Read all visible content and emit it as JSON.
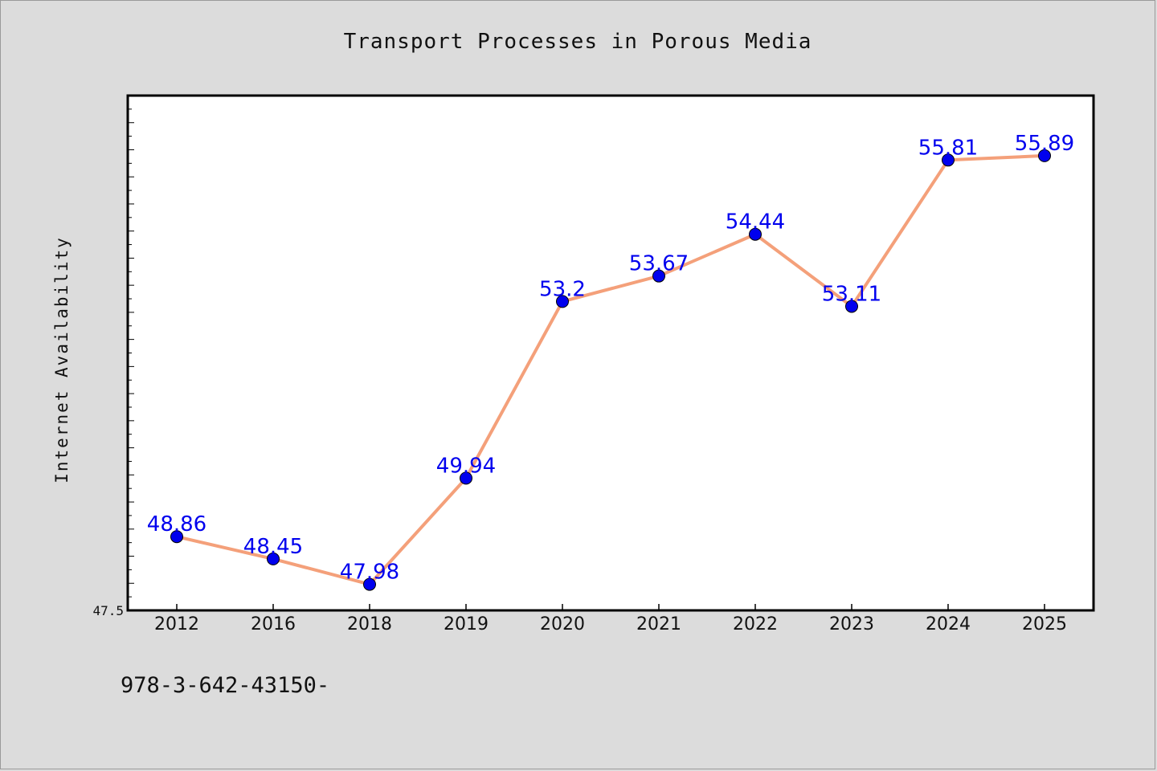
{
  "chart_data": {
    "type": "line",
    "title": "Transport Processes in Porous Media",
    "xlabel": "",
    "ylabel": "Internet Availability",
    "categories": [
      "2012",
      "2016",
      "2018",
      "2019",
      "2020",
      "2021",
      "2022",
      "2023",
      "2024",
      "2025"
    ],
    "series": [
      {
        "values": [
          48.86,
          48.45,
          47.98,
          49.94,
          53.2,
          53.67,
          54.44,
          53.11,
          55.81,
          55.89
        ],
        "labels": [
          "48.86",
          "48.45",
          "47.98",
          "49.94",
          "53.2",
          "53.67",
          "54.44",
          "53.11",
          "55.81",
          "55.89"
        ],
        "line_color": "#f4a07a",
        "marker_color": "#0000ee"
      }
    ],
    "ylim": [
      47.5,
      57
    ],
    "yticks": [
      47.5
    ],
    "grid": false
  },
  "footnote": "978-3-642-43150-"
}
